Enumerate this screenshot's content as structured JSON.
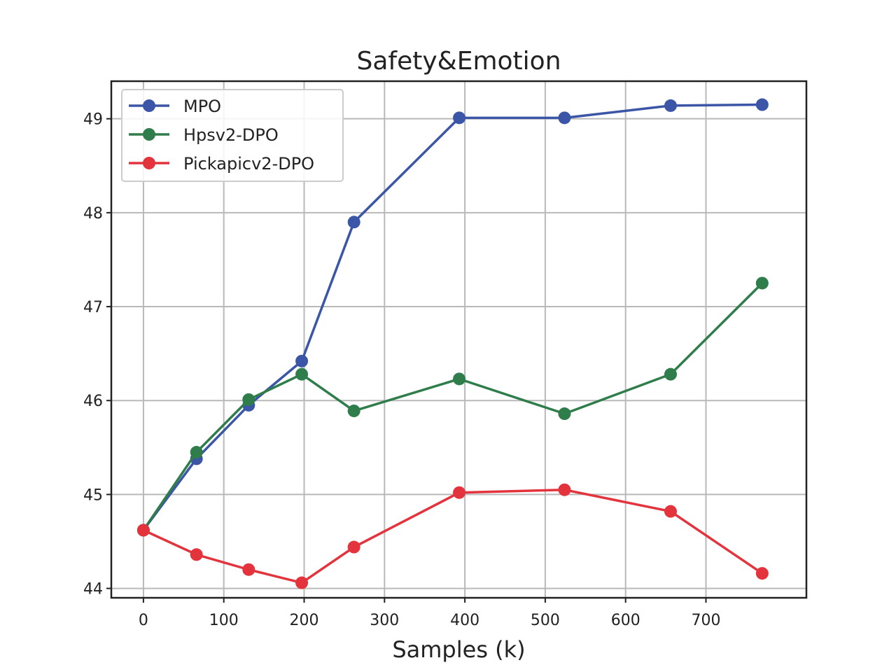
{
  "chart_data": {
    "type": "line",
    "title": "Safety&Emotion",
    "xlabel": "Samples (k)",
    "ylabel": "",
    "xlim": [
      -40,
      825
    ],
    "ylim": [
      43.9,
      49.4
    ],
    "xticks": [
      0,
      100,
      200,
      300,
      400,
      500,
      600,
      700
    ],
    "yticks": [
      44,
      45,
      46,
      47,
      48,
      49
    ],
    "grid": true,
    "legend_position": "upper-left",
    "x": [
      0,
      66,
      131,
      197,
      262,
      393,
      524,
      656,
      770
    ],
    "series": [
      {
        "name": "MPO",
        "color": "#3b56a6",
        "values": [
          44.62,
          45.38,
          45.95,
          46.42,
          47.9,
          49.01,
          49.01,
          49.14,
          49.15
        ]
      },
      {
        "name": "Hpsv2-DPO",
        "color": "#2e7d4a",
        "values": [
          44.62,
          45.45,
          46.01,
          46.28,
          45.89,
          46.23,
          45.86,
          46.28,
          47.25
        ]
      },
      {
        "name": "Pickapicv2-DPO",
        "color": "#e3333d",
        "values": [
          44.62,
          44.36,
          44.2,
          44.06,
          44.44,
          45.02,
          45.05,
          44.82,
          44.16
        ]
      }
    ]
  }
}
